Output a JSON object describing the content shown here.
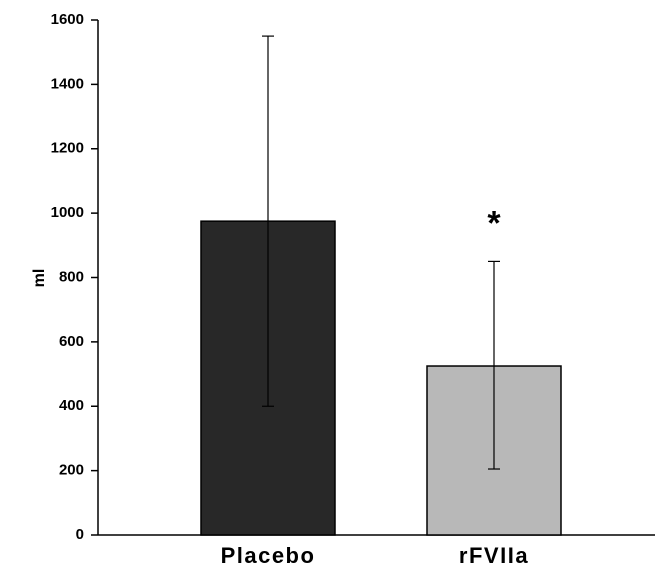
{
  "chart_data": {
    "type": "bar",
    "categories": [
      "Placebo",
      "rFVIIa"
    ],
    "values": [
      975,
      525
    ],
    "error_upper": [
      1550,
      850
    ],
    "error_lower": [
      400,
      205
    ],
    "ylabel": "ml",
    "ylim": [
      0,
      1600
    ],
    "yticks": [
      0,
      200,
      400,
      600,
      800,
      1000,
      1200,
      1400,
      1600
    ],
    "grid": false,
    "bar_colors": [
      "#282828",
      "#b8b8b8"
    ],
    "annotation": {
      "text": "*",
      "category": "rFVIIa"
    }
  }
}
